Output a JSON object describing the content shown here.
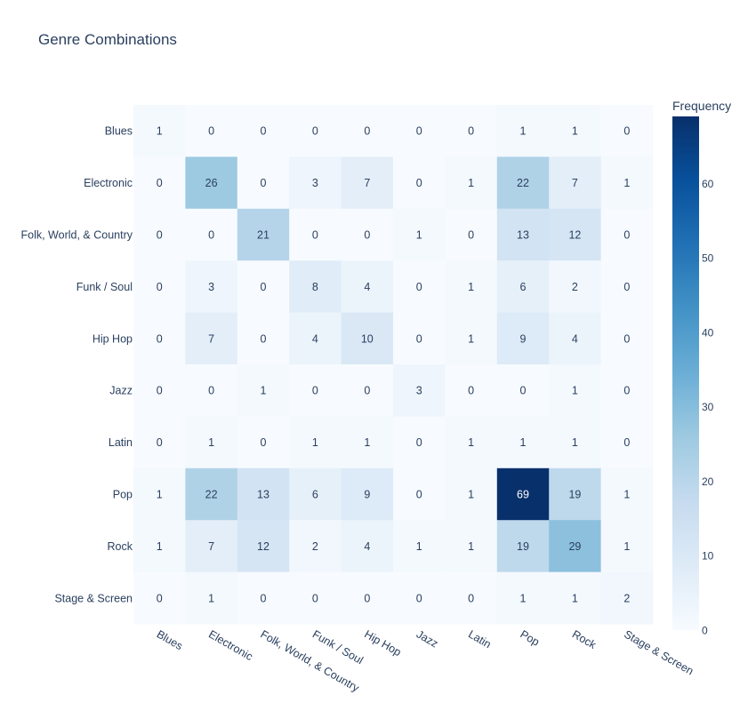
{
  "chart_data": {
    "type": "heatmap",
    "title": "Genre Combinations",
    "x_categories": [
      "Blues",
      "Electronic",
      "Folk, World, & Country",
      "Funk / Soul",
      "Hip Hop",
      "Jazz",
      "Latin",
      "Pop",
      "Rock",
      "Stage & Screen"
    ],
    "y_categories": [
      "Blues",
      "Electronic",
      "Folk, World, & Country",
      "Funk / Soul",
      "Hip Hop",
      "Jazz",
      "Latin",
      "Pop",
      "Rock",
      "Stage & Screen"
    ],
    "z": [
      [
        1,
        0,
        0,
        0,
        0,
        0,
        0,
        1,
        1,
        0
      ],
      [
        0,
        26,
        0,
        3,
        7,
        0,
        1,
        22,
        7,
        1
      ],
      [
        0,
        0,
        21,
        0,
        0,
        1,
        0,
        13,
        12,
        0
      ],
      [
        0,
        3,
        0,
        8,
        4,
        0,
        1,
        6,
        2,
        0
      ],
      [
        0,
        7,
        0,
        4,
        10,
        0,
        1,
        9,
        4,
        0
      ],
      [
        0,
        0,
        1,
        0,
        0,
        3,
        0,
        0,
        1,
        0
      ],
      [
        0,
        1,
        0,
        1,
        1,
        0,
        1,
        1,
        1,
        0
      ],
      [
        1,
        22,
        13,
        6,
        9,
        0,
        1,
        69,
        19,
        1
      ],
      [
        1,
        7,
        12,
        2,
        4,
        1,
        1,
        19,
        29,
        1
      ],
      [
        0,
        1,
        0,
        0,
        0,
        0,
        0,
        1,
        1,
        2
      ]
    ],
    "colorscale": "Blues",
    "zmin": 0,
    "zmax": 69,
    "colorbar": {
      "title": "Frequency",
      "ticks": [
        0,
        10,
        20,
        30,
        40,
        50,
        60
      ]
    },
    "xlabel": "",
    "ylabel": ""
  }
}
